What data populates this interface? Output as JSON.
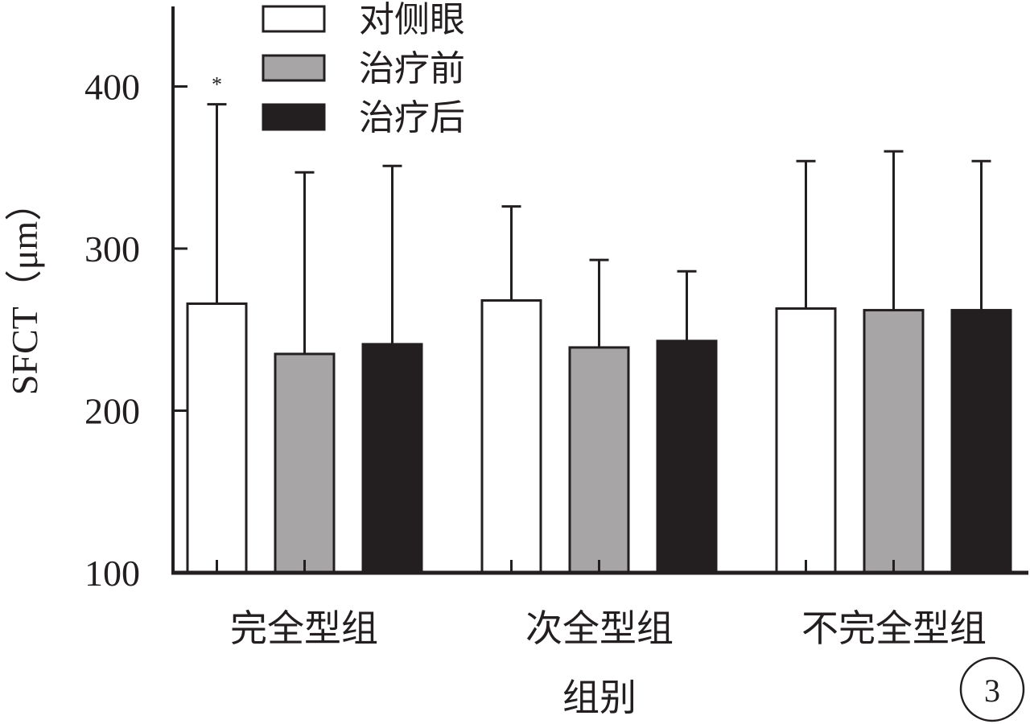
{
  "chart_data": {
    "type": "bar",
    "categories": [
      "完全型组",
      "次全型组",
      "不完全型组"
    ],
    "series": [
      {
        "name": "对侧眼",
        "color": "#ffffff",
        "values": [
          266,
          268,
          263
        ],
        "error_top": [
          389,
          326,
          354
        ]
      },
      {
        "name": "治疗前",
        "color": "#a7a5a6",
        "values": [
          235,
          239,
          262
        ],
        "error_top": [
          347,
          293,
          360
        ]
      },
      {
        "name": "治疗后",
        "color": "#231f20",
        "values": [
          241,
          243,
          262
        ],
        "error_top": [
          351,
          286,
          354
        ]
      }
    ],
    "xlabel": "组别",
    "ylabel": "SFCT（μm）",
    "ylim": [
      100,
      450
    ],
    "yticks": [
      100,
      200,
      300,
      400
    ],
    "legend": "top-left",
    "grid": false,
    "annotations": [
      {
        "text": "*",
        "category": "完全型组",
        "series": "对侧眼"
      }
    ]
  },
  "panel_label": "3"
}
